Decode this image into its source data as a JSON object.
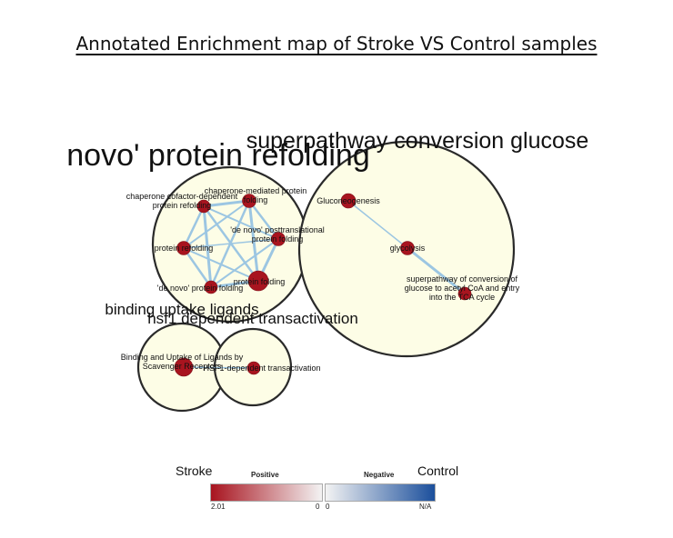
{
  "title": "Annotated Enrichment map of Stroke VS Control samples",
  "clusters": [
    {
      "id": "c1",
      "label": "novo' protein refolding"
    },
    {
      "id": "c2",
      "label": "superpathway conversion glucose"
    },
    {
      "id": "c3",
      "label": "binding uptake ligands"
    },
    {
      "id": "c4",
      "label": "hsf1 dependent transactivation"
    }
  ],
  "nodes": [
    {
      "id": "n1",
      "label": [
        "chaperone cofactor-dependent",
        "protein refolding"
      ]
    },
    {
      "id": "n2",
      "label": [
        "chaperone-mediated protein",
        "folding"
      ]
    },
    {
      "id": "n3",
      "label": [
        "'de novo' posttranslational",
        "protein folding"
      ]
    },
    {
      "id": "n4",
      "label": [
        "protein refolding"
      ]
    },
    {
      "id": "n5",
      "label": [
        "'de novo' protein folding"
      ]
    },
    {
      "id": "n6",
      "label": [
        "protein folding"
      ]
    },
    {
      "id": "n7",
      "label": [
        "Gluconeogenesis"
      ]
    },
    {
      "id": "n8",
      "label": [
        "glycolysis"
      ]
    },
    {
      "id": "n9",
      "label": [
        "superpathway of conversion of",
        "glucose to acetyl CoA and entry",
        "into the TCA cycle"
      ]
    },
    {
      "id": "n10",
      "label": [
        "Binding and Uptake of Ligands by",
        "Scavenger Receptors"
      ]
    },
    {
      "id": "n11",
      "label": [
        "HSF1-dependent transactivation"
      ]
    }
  ],
  "edges": [
    [
      "n1",
      "n2"
    ],
    [
      "n1",
      "n3"
    ],
    [
      "n1",
      "n4"
    ],
    [
      "n1",
      "n5"
    ],
    [
      "n1",
      "n6"
    ],
    [
      "n2",
      "n3"
    ],
    [
      "n2",
      "n4"
    ],
    [
      "n2",
      "n5"
    ],
    [
      "n2",
      "n6"
    ],
    [
      "n3",
      "n4"
    ],
    [
      "n3",
      "n5"
    ],
    [
      "n3",
      "n6"
    ],
    [
      "n4",
      "n5"
    ],
    [
      "n4",
      "n6"
    ],
    [
      "n5",
      "n6"
    ],
    [
      "n7",
      "n8"
    ],
    [
      "n8",
      "n9"
    ],
    [
      "n10",
      "n11"
    ]
  ],
  "legend": {
    "left_side_label": "Stroke",
    "right_side_label": "Control",
    "positive_title": "Positive",
    "negative_title": "Negative",
    "positive_max": "2.01",
    "positive_min": "0",
    "negative_min": "0",
    "negative_max": "N/A",
    "colors": {
      "positive_strong": "#a8141f",
      "neutral": "#f3f3f3",
      "negative_strong": "#1b4f9c"
    }
  }
}
